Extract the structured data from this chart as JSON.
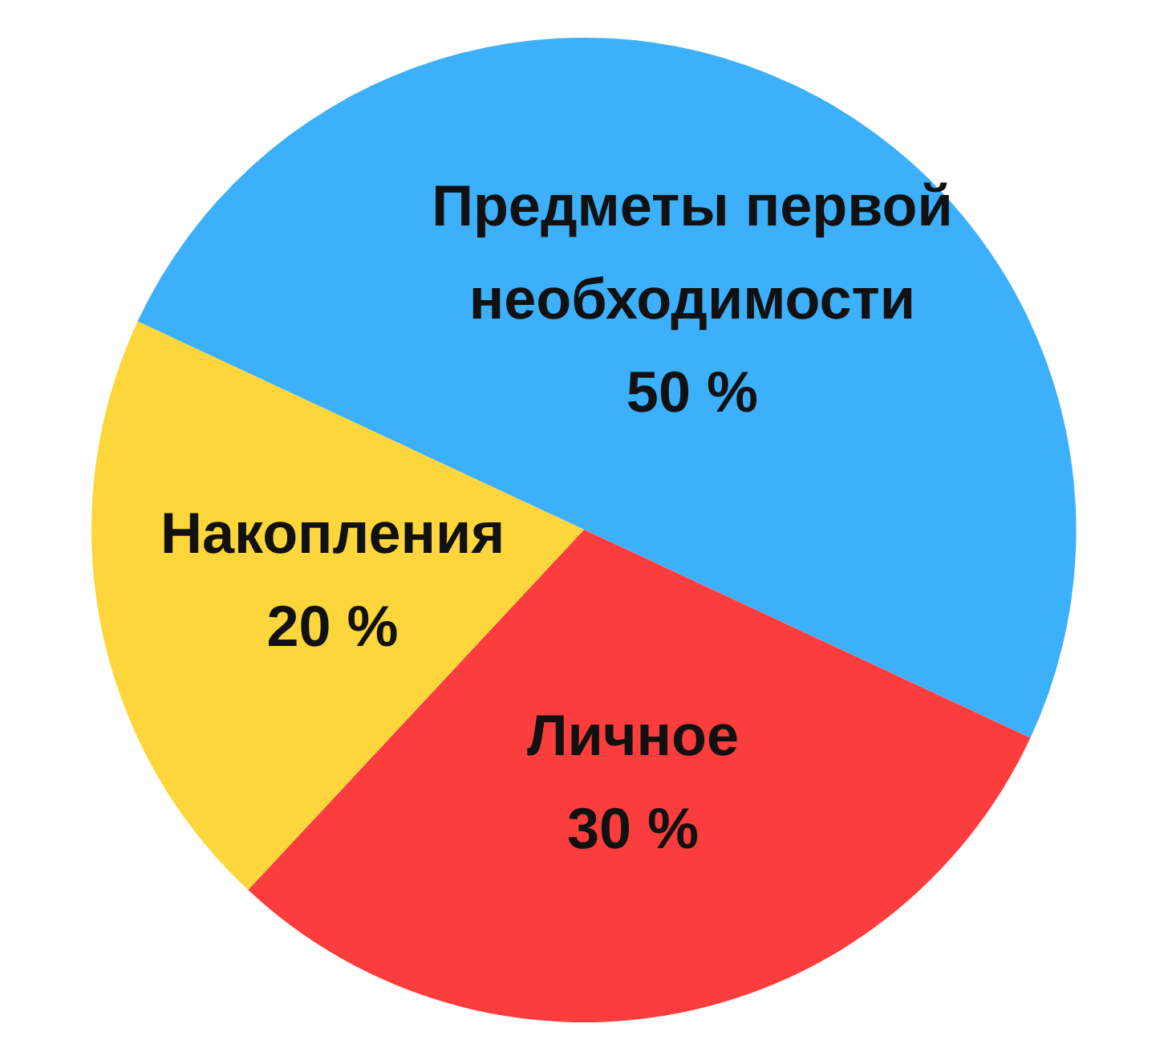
{
  "chart_data": {
    "type": "pie",
    "categories": [
      "Предметы первой необходимости",
      "Личное",
      "Накопления"
    ],
    "values": [
      50,
      30,
      20
    ],
    "colors": [
      "#3db0fc",
      "#fc3d3d",
      "#fdd63b"
    ],
    "value_labels": [
      "50 %",
      "30 %",
      "20 %"
    ]
  }
}
